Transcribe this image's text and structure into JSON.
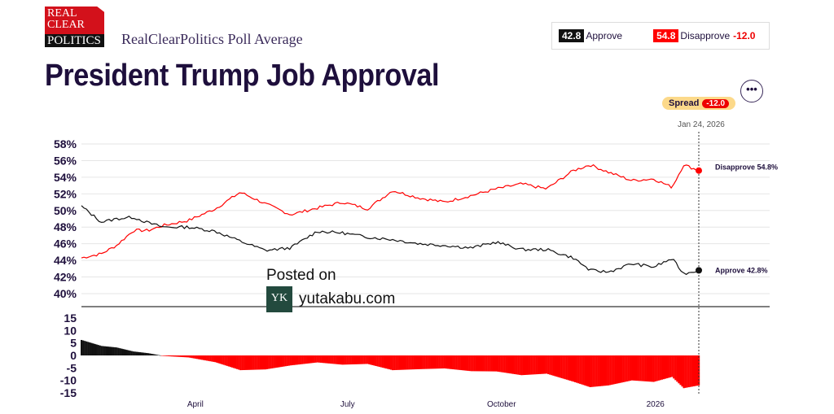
{
  "header": {
    "logo_lines": [
      "REAL",
      "CLEAR",
      "POLITICS"
    ],
    "subtitle": "RealClearPolitics Poll Average",
    "title": "President Trump Job Approval"
  },
  "legend": {
    "approve_value": "42.8",
    "approve_label": "Approve",
    "disapprove_value": "54.8",
    "disapprove_label": "Disapprove",
    "spread": "-12.0"
  },
  "spread_badge": {
    "label": "Spread",
    "value": "-12.0"
  },
  "current_date": "Jan 24, 2026",
  "more_label": "•••",
  "watermark": {
    "line1": "Posted on",
    "icon": "YK",
    "site": "yutakabu.com"
  },
  "colors": {
    "approve": "#111111",
    "disapprove": "#ff0000"
  },
  "chart_data": {
    "type": "line",
    "title": "President Trump Job Approval",
    "ylim": [
      40,
      58
    ],
    "yticks": [
      "58%",
      "56%",
      "54%",
      "52%",
      "50%",
      "48%",
      "46%",
      "44%",
      "42%",
      "40%"
    ],
    "spread_ylim": [
      -15,
      15
    ],
    "spread_ticks": [
      "15",
      "10",
      "5",
      "0",
      "-5",
      "-10",
      "-15"
    ],
    "xticks": [
      {
        "label": "April",
        "date": "2025-04-01"
      },
      {
        "label": "July",
        "date": "2025-07-01"
      },
      {
        "label": "October",
        "date": "2025-10-01"
      },
      {
        "label": "2026",
        "date": "2026-01-01"
      }
    ],
    "end_labels": {
      "approve": "Approve 42.8%",
      "disapprove": "Disapprove 54.8%"
    },
    "x": [
      "2025-01-20",
      "2025-02-01",
      "2025-02-10",
      "2025-02-20",
      "2025-03-01",
      "2025-03-10",
      "2025-03-25",
      "2025-04-10",
      "2025-04-25",
      "2025-05-10",
      "2025-05-25",
      "2025-06-10",
      "2025-06-25",
      "2025-07-10",
      "2025-07-25",
      "2025-08-10",
      "2025-08-25",
      "2025-09-10",
      "2025-09-25",
      "2025-10-10",
      "2025-10-25",
      "2025-11-10",
      "2025-11-20",
      "2025-12-01",
      "2025-12-15",
      "2025-12-28",
      "2026-01-08",
      "2026-01-15",
      "2026-01-24"
    ],
    "series": [
      {
        "name": "Approve",
        "values": [
          50.5,
          48.6,
          49.0,
          49.2,
          48.5,
          48.0,
          48.0,
          47.5,
          46.3,
          45.2,
          45.5,
          47.5,
          47.3,
          46.8,
          46.5,
          46.0,
          45.8,
          45.5,
          46.2,
          45.3,
          45.3,
          44.3,
          42.8,
          42.6,
          43.6,
          43.2,
          44.2,
          42.4,
          42.8
        ]
      },
      {
        "name": "Disapprove",
        "values": [
          44.3,
          44.8,
          45.8,
          47.6,
          47.6,
          48.2,
          48.8,
          50.2,
          52.2,
          50.8,
          49.5,
          50.3,
          51.0,
          50.2,
          52.4,
          51.5,
          51.0,
          51.8,
          52.6,
          53.2,
          52.6,
          54.8,
          55.5,
          54.6,
          53.6,
          53.8,
          52.8,
          55.5,
          54.8
        ]
      }
    ]
  }
}
